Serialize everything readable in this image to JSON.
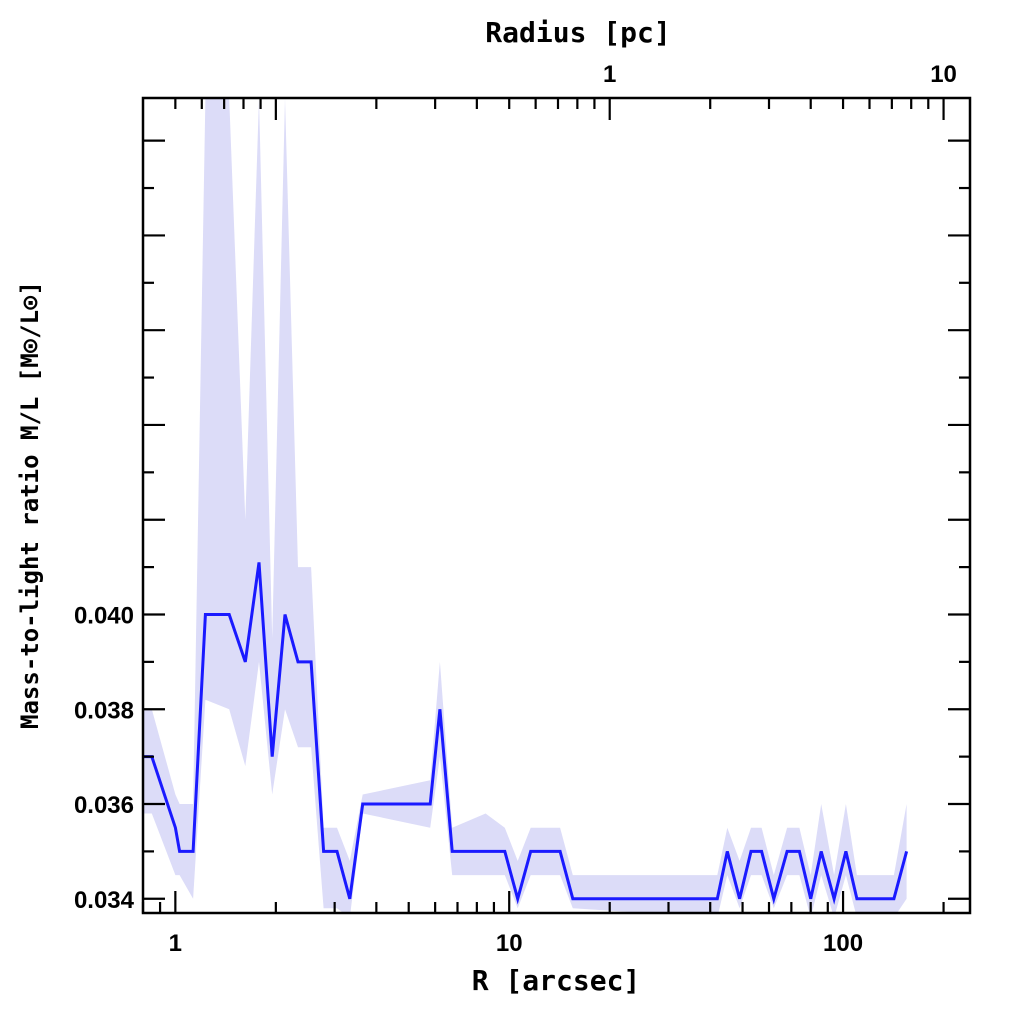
{
  "chart_data": {
    "type": "line",
    "xlabel": "R [arcsec]",
    "ylabel": "Mass-to-light ratio M/L [M⊙/L⊙]",
    "top_axis_label": "Radius [pc]",
    "x_scale": "log",
    "xlim": [
      0.8,
      240
    ],
    "ylim": [
      0.0337,
      0.0509
    ],
    "x_ticks": [
      {
        "value": 1,
        "label": "1"
      },
      {
        "value": 10,
        "label": "10"
      },
      {
        "value": 100,
        "label": "100"
      }
    ],
    "y_ticks": [
      {
        "value": 0.034,
        "label": "0.034"
      },
      {
        "value": 0.036,
        "label": "0.036"
      },
      {
        "value": 0.038,
        "label": "0.038"
      },
      {
        "value": 0.04,
        "label": "0.040"
      }
    ],
    "top_ticks": [
      {
        "value": 1,
        "label": "1"
      },
      {
        "value": 10,
        "label": "10"
      }
    ],
    "line_color": "#1a1aff",
    "band_color": "#dcdcf8",
    "series": [
      {
        "x": [
          0.8,
          0.85,
          1.0,
          1.03,
          1.13,
          1.23,
          1.45,
          1.62,
          1.78,
          1.95,
          2.13,
          2.33,
          2.55,
          2.78,
          3.05,
          3.33,
          3.64,
          5.8,
          6.2,
          6.75,
          8.5,
          9.7,
          10.6,
          11.6,
          13.0,
          14.2,
          15.5,
          42.0,
          45.0,
          49.0,
          53.0,
          57.0,
          62.0,
          68.0,
          74.0,
          80.0,
          86.0,
          94.0,
          102.0,
          110.0,
          120.0,
          130.0,
          142.0,
          155.0
        ],
        "y": [
          0.037,
          0.037,
          0.0355,
          0.035,
          0.035,
          0.04,
          0.04,
          0.039,
          0.0411,
          0.037,
          0.04,
          0.039,
          0.039,
          0.035,
          0.035,
          0.034,
          0.036,
          0.036,
          0.038,
          0.035,
          0.035,
          0.035,
          0.034,
          0.035,
          0.035,
          0.035,
          0.034,
          0.034,
          0.035,
          0.034,
          0.035,
          0.035,
          0.034,
          0.035,
          0.035,
          0.034,
          0.035,
          0.034,
          0.035,
          0.034,
          0.034,
          0.034,
          0.034,
          0.035
        ],
        "lower": [
          0.0358,
          0.0358,
          0.0345,
          0.0345,
          0.034,
          0.0382,
          0.038,
          0.0368,
          0.039,
          0.0362,
          0.038,
          0.0372,
          0.0372,
          0.0338,
          0.0338,
          0.0336,
          0.0358,
          0.0355,
          0.037,
          0.0345,
          0.0345,
          0.0345,
          0.0338,
          0.0345,
          0.0345,
          0.0345,
          0.0338,
          0.0336,
          0.0345,
          0.0338,
          0.0345,
          0.0345,
          0.0338,
          0.0345,
          0.0345,
          0.0336,
          0.0345,
          0.0336,
          0.0345,
          0.0336,
          0.0336,
          0.0336,
          0.0336,
          0.034
        ],
        "upper": [
          0.038,
          0.038,
          0.0362,
          0.036,
          0.036,
          0.0509,
          0.0509,
          0.042,
          0.0509,
          0.0395,
          0.0509,
          0.041,
          0.041,
          0.0355,
          0.0355,
          0.0348,
          0.0362,
          0.0365,
          0.039,
          0.0355,
          0.0358,
          0.0355,
          0.0348,
          0.0355,
          0.0355,
          0.0355,
          0.0345,
          0.0345,
          0.0355,
          0.0348,
          0.0355,
          0.0355,
          0.0345,
          0.0355,
          0.0355,
          0.0345,
          0.036,
          0.0345,
          0.036,
          0.0345,
          0.0345,
          0.0345,
          0.0345,
          0.036
        ]
      }
    ]
  }
}
